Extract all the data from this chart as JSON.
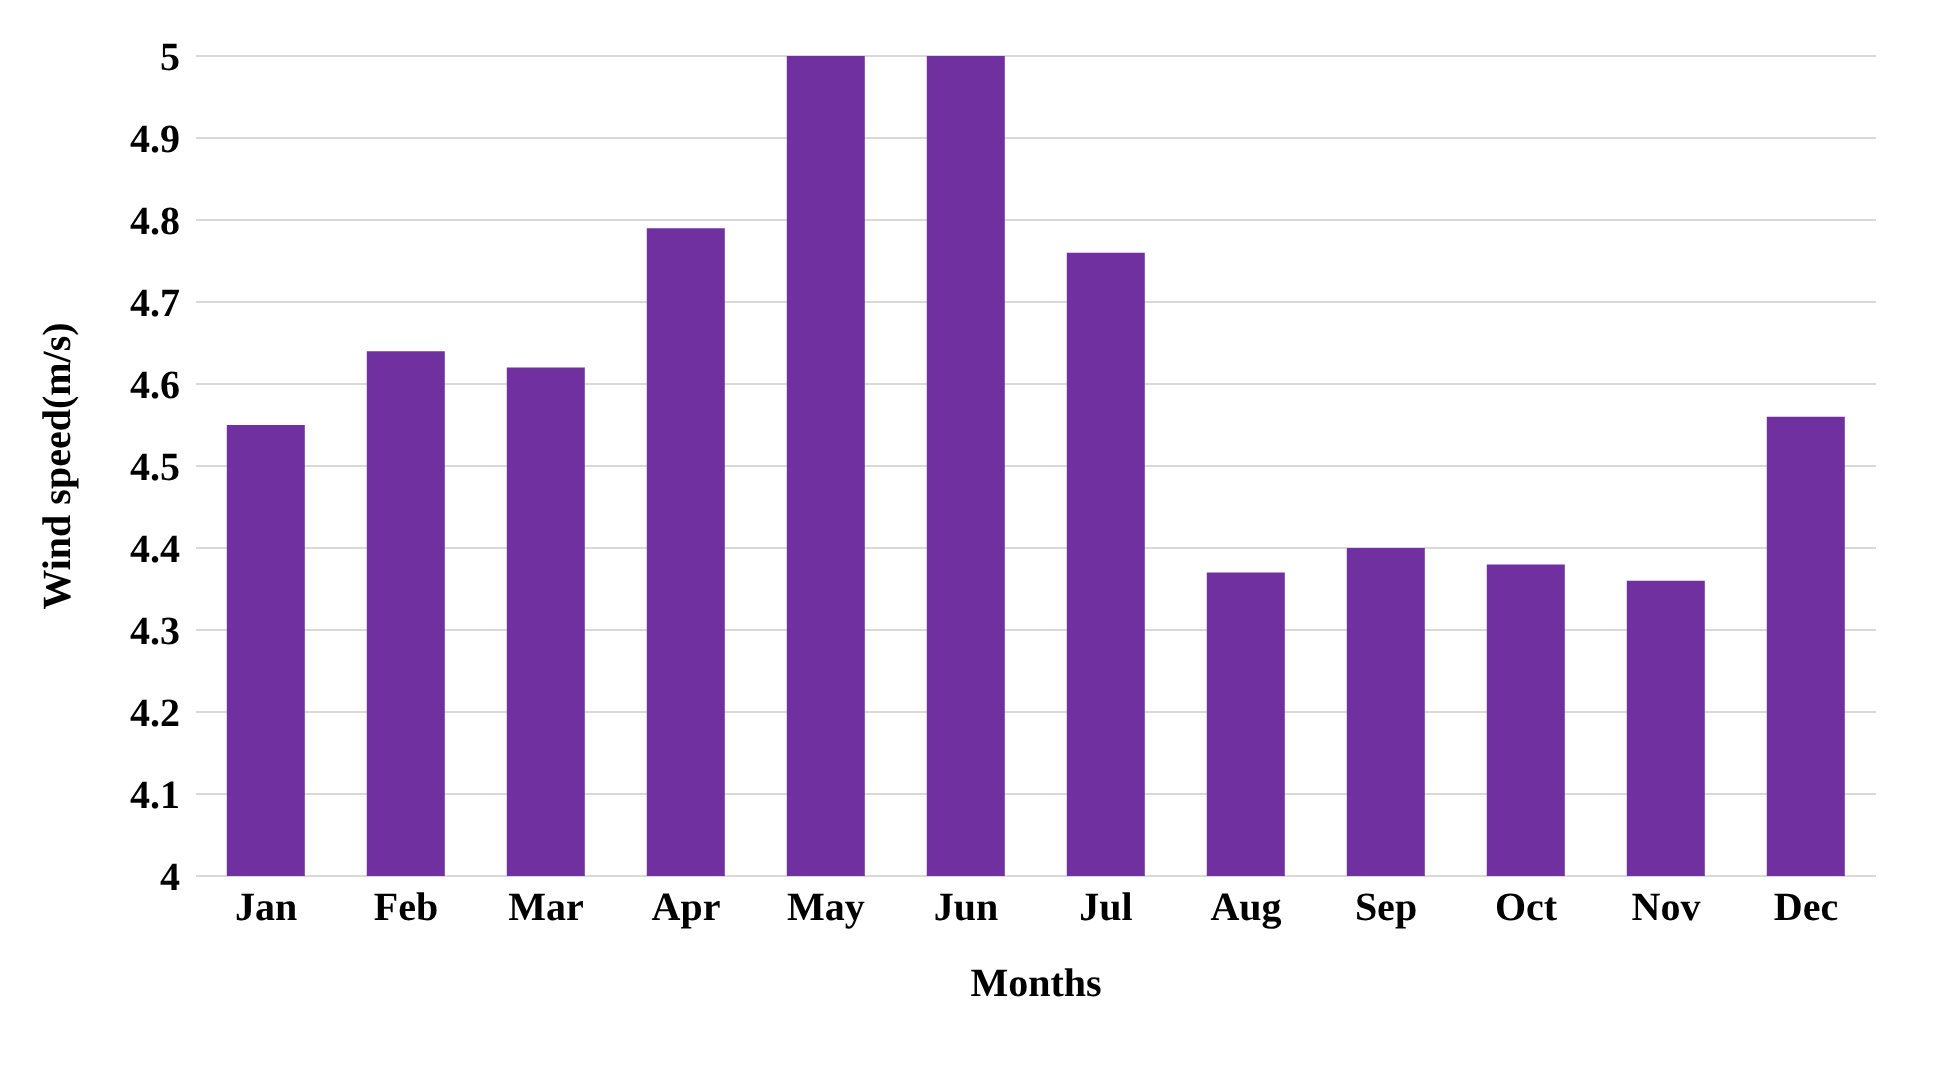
{
  "chart_data": {
    "type": "bar",
    "xlabel": "Months",
    "ylabel": "Wind speed(m/s)",
    "categories": [
      "Jan",
      "Feb",
      "Mar",
      "Apr",
      "May",
      "Jun",
      "Jul",
      "Aug",
      "Sep",
      "Oct",
      "Nov",
      "Dec"
    ],
    "values": [
      4.55,
      4.64,
      4.62,
      4.79,
      5.0,
      5.0,
      4.76,
      4.37,
      4.4,
      4.38,
      4.36,
      4.56
    ],
    "color": "#7030a0",
    "ylim": [
      4,
      5
    ],
    "yticks": [
      4,
      4.1,
      4.2,
      4.3,
      4.4,
      4.5,
      4.6,
      4.7,
      4.8,
      4.9,
      5
    ],
    "grid": "y"
  }
}
